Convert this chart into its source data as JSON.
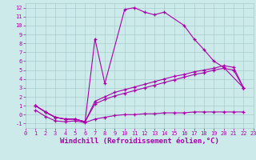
{
  "background_color": "#cceaea",
  "grid_color": "#aacccc",
  "line_color": "#aa00aa",
  "xlabel": "Windchill (Refroidissement éolien,°C)",
  "xlabel_fontsize": 6.5,
  "yticks": [
    -1,
    0,
    1,
    2,
    3,
    4,
    5,
    6,
    7,
    8,
    9,
    10,
    11,
    12
  ],
  "xticks": [
    0,
    1,
    2,
    3,
    4,
    5,
    6,
    7,
    8,
    9,
    10,
    11,
    12,
    13,
    14,
    15,
    16,
    17,
    18,
    19,
    20,
    21,
    22,
    23
  ],
  "xlim": [
    0,
    23
  ],
  "ylim": [
    -1.5,
    12.5
  ],
  "line1_x": [
    1,
    2,
    3,
    4,
    5,
    6,
    7,
    8,
    10,
    11,
    12,
    13,
    14,
    16,
    17,
    18,
    19,
    20,
    22
  ],
  "line1_y": [
    1.0,
    0.3,
    -0.3,
    -0.5,
    -0.5,
    -0.8,
    8.5,
    3.5,
    11.8,
    12.0,
    11.5,
    11.2,
    11.5,
    10.0,
    8.5,
    7.3,
    6.0,
    5.3,
    3.0
  ],
  "line2_x": [
    1,
    2,
    3,
    4,
    5,
    6,
    7,
    8,
    9,
    10,
    11,
    12,
    13,
    14,
    15,
    16,
    17,
    18,
    19,
    20,
    21,
    22
  ],
  "line2_y": [
    1.0,
    0.3,
    -0.3,
    -0.5,
    -0.5,
    -0.8,
    1.5,
    2.0,
    2.5,
    2.8,
    3.1,
    3.4,
    3.7,
    4.0,
    4.3,
    4.5,
    4.8,
    5.0,
    5.2,
    5.5,
    5.3,
    3.0
  ],
  "line3_x": [
    1,
    2,
    3,
    4,
    5,
    6,
    7,
    8,
    9,
    10,
    11,
    12,
    13,
    14,
    15,
    16,
    17,
    18,
    19,
    20,
    21,
    22
  ],
  "line3_y": [
    1.0,
    0.3,
    -0.3,
    -0.5,
    -0.5,
    -0.8,
    1.2,
    1.7,
    2.1,
    2.4,
    2.7,
    3.0,
    3.3,
    3.6,
    3.9,
    4.2,
    4.5,
    4.7,
    5.0,
    5.2,
    5.0,
    3.0
  ],
  "line4_x": [
    1,
    2,
    3,
    4,
    5,
    6,
    7,
    8,
    9,
    10,
    11,
    12,
    13,
    14,
    15,
    16,
    17,
    18,
    19,
    20,
    21,
    22
  ],
  "line4_y": [
    0.5,
    -0.2,
    -0.7,
    -0.8,
    -0.7,
    -0.9,
    -0.5,
    -0.3,
    -0.1,
    0.0,
    0.0,
    0.1,
    0.1,
    0.2,
    0.2,
    0.2,
    0.3,
    0.3,
    0.3,
    0.3,
    0.3,
    0.3
  ]
}
